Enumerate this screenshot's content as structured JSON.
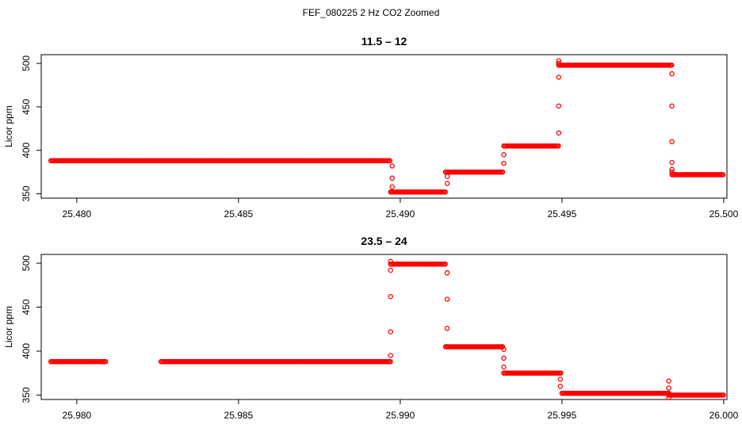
{
  "figure_title": "FEF_080225  2 Hz CO2 Zoomed",
  "chart_data": [
    {
      "type": "scatter",
      "title": "11.5 – 12",
      "xlabel": "",
      "ylabel": "Licor ppm",
      "xlim": [
        25.4789,
        25.5001
      ],
      "ylim": [
        345,
        510
      ],
      "xticks": [
        "25.480",
        "25.485",
        "25.490",
        "25.495",
        "25.500"
      ],
      "yticks": [
        "350",
        "400",
        "450",
        "500"
      ],
      "marker_color": "#ff0000",
      "grid": false,
      "segments": [
        {
          "x0": 25.4792,
          "x1": 25.4897,
          "y": 388
        },
        {
          "x0": 25.4897,
          "x1": 25.4914,
          "y": 352
        },
        {
          "x0": 25.4914,
          "x1": 25.4932,
          "y": 375
        },
        {
          "x0": 25.4932,
          "x1": 25.4949,
          "y": 405
        },
        {
          "x0": 25.4949,
          "x1": 25.4984,
          "y": 498
        },
        {
          "x0": 25.4984,
          "x1": 25.5,
          "y": 372
        }
      ],
      "transitions": [
        {
          "x": 25.48975,
          "y": [
            382,
            368,
            358,
            352
          ]
        },
        {
          "x": 25.49145,
          "y": [
            362,
            370
          ]
        },
        {
          "x": 25.4932,
          "y": [
            385,
            395
          ]
        },
        {
          "x": 25.4949,
          "y": [
            420,
            451,
            484,
            500,
            503
          ]
        },
        {
          "x": 25.4984,
          "y": [
            488,
            451,
            410,
            386,
            378,
            375
          ]
        }
      ]
    },
    {
      "type": "scatter",
      "title": "23.5 – 24",
      "xlabel": "",
      "ylabel": "Licor ppm",
      "xlim": [
        25.9789,
        26.0001
      ],
      "ylim": [
        345,
        510
      ],
      "xticks": [
        "25.980",
        "25.985",
        "25.990",
        "25.995",
        "26.000"
      ],
      "yticks": [
        "350",
        "400",
        "450",
        "500"
      ],
      "marker_color": "#ff0000",
      "grid": false,
      "segments": [
        {
          "x0": 25.9792,
          "x1": 25.9809,
          "y": 388
        },
        {
          "x0": 25.9826,
          "x1": 25.9897,
          "y": 388
        },
        {
          "x0": 25.9897,
          "x1": 25.9914,
          "y": 499
        },
        {
          "x0": 25.9914,
          "x1": 25.9932,
          "y": 405
        },
        {
          "x0": 25.9932,
          "x1": 25.995,
          "y": 375
        },
        {
          "x0": 25.995,
          "x1": 25.9983,
          "y": 352
        },
        {
          "x0": 25.9983,
          "x1": 26.0,
          "y": 350
        }
      ],
      "transitions": [
        {
          "x": 25.9897,
          "y": [
            395,
            422,
            462,
            492,
            502
          ]
        },
        {
          "x": 25.99145,
          "y": [
            489,
            459,
            426,
            405
          ]
        },
        {
          "x": 25.9932,
          "y": [
            402,
            392,
            382
          ]
        },
        {
          "x": 25.99495,
          "y": [
            368,
            360
          ]
        },
        {
          "x": 25.9983,
          "y": [
            366,
            358,
            347,
            352
          ]
        }
      ]
    }
  ]
}
